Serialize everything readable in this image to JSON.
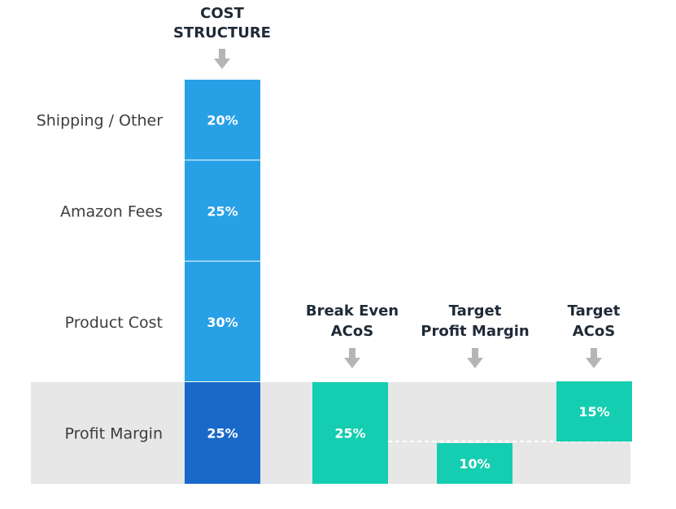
{
  "chart_data": {
    "type": "bar",
    "title": "",
    "colors": {
      "cost_segment": "#28a0e6",
      "profit_segment": "#1869c9",
      "acos_box": "#15cdb0",
      "band": "#e7e7e7",
      "arrow": "#b5b5b5",
      "dashed_line": "#ffffff",
      "segment_divider": "#ffffff"
    },
    "scale": {
      "unit": "%",
      "max": 100
    },
    "stack": {
      "header": [
        "COST",
        "STRUCTURE"
      ],
      "segments": [
        {
          "label": "Shipping / Other",
          "value": 20,
          "text": "20%"
        },
        {
          "label": "Amazon Fees",
          "value": 25,
          "text": "25%"
        },
        {
          "label": "Product Cost",
          "value": 30,
          "text": "30%"
        },
        {
          "label": "Profit Margin",
          "value": 25,
          "text": "25%"
        }
      ]
    },
    "metrics": [
      {
        "header": [
          "Break Even",
          "ACoS"
        ],
        "value": 25,
        "text": "25%",
        "position": "full-band"
      },
      {
        "header": [
          "Target",
          "Profit Margin"
        ],
        "value": 10,
        "text": "10%",
        "position": "below-dash"
      },
      {
        "header": [
          "Target",
          "ACoS"
        ],
        "value": 15,
        "text": "15%",
        "position": "above-dash"
      }
    ]
  }
}
